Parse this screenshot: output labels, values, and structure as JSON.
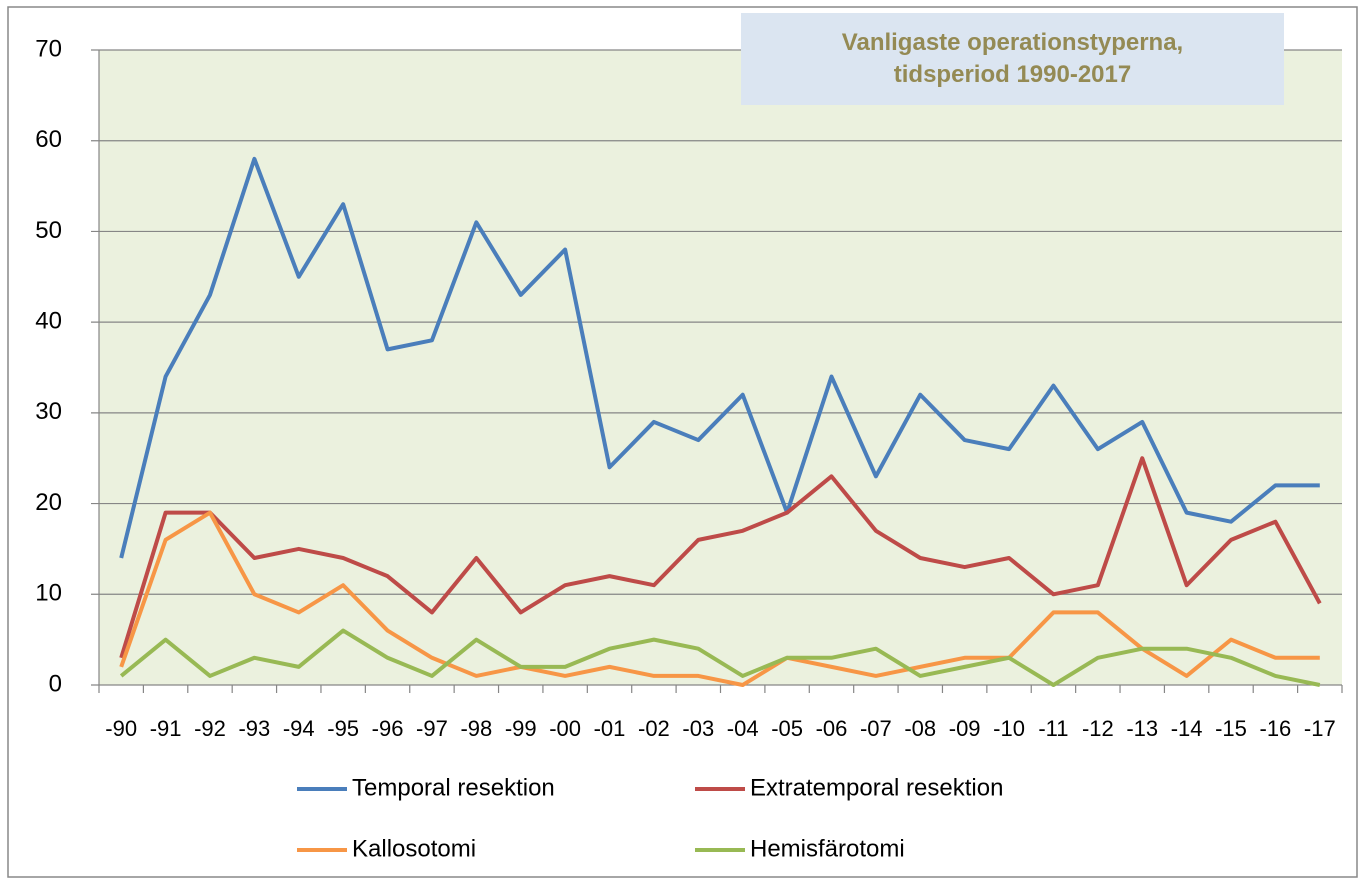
{
  "chart_data": {
    "type": "line",
    "title": "Vanligaste operationstyperna, tidsperiod 1990-2017",
    "categories": [
      "-90",
      "-91",
      "-92",
      "-93",
      "-94",
      "-95",
      "-96",
      "-97",
      "-98",
      "-99",
      "-00",
      "-01",
      "-02",
      "-03",
      "-04",
      "-05",
      "-06",
      "-07",
      "-08",
      "-09",
      "-10",
      "-11",
      "-12",
      "-13",
      "-14",
      "-15",
      "-16",
      "-17"
    ],
    "series": [
      {
        "name": "Temporal resektion",
        "color": "#4a7ebb",
        "values": [
          14,
          34,
          43,
          58,
          45,
          53,
          37,
          38,
          51,
          43,
          48,
          24,
          29,
          27,
          32,
          19,
          34,
          23,
          32,
          27,
          26,
          33,
          26,
          29,
          19,
          18,
          22,
          22
        ]
      },
      {
        "name": "Extratemporal resektion",
        "color": "#be4b48",
        "values": [
          3,
          19,
          19,
          14,
          15,
          14,
          12,
          8,
          14,
          8,
          11,
          12,
          11,
          16,
          17,
          19,
          23,
          17,
          14,
          13,
          14,
          10,
          11,
          25,
          11,
          16,
          18,
          9
        ]
      },
      {
        "name": "Kallosotomi",
        "color": "#f79646",
        "values": [
          2,
          16,
          19,
          10,
          8,
          11,
          6,
          3,
          1,
          2,
          1,
          2,
          1,
          1,
          0,
          3,
          2,
          1,
          2,
          3,
          3,
          8,
          8,
          4,
          1,
          5,
          3,
          3
        ]
      },
      {
        "name": "Hemisfärotomi",
        "color": "#98b954",
        "values": [
          1,
          5,
          1,
          3,
          2,
          6,
          3,
          1,
          5,
          2,
          2,
          4,
          5,
          4,
          1,
          3,
          3,
          4,
          1,
          2,
          3,
          0,
          3,
          4,
          4,
          3,
          1,
          0
        ]
      }
    ],
    "ylim": [
      0,
      70
    ],
    "yticks": [
      0,
      10,
      20,
      30,
      40,
      50,
      60,
      70
    ],
    "grid": true,
    "legend": "bottom"
  }
}
